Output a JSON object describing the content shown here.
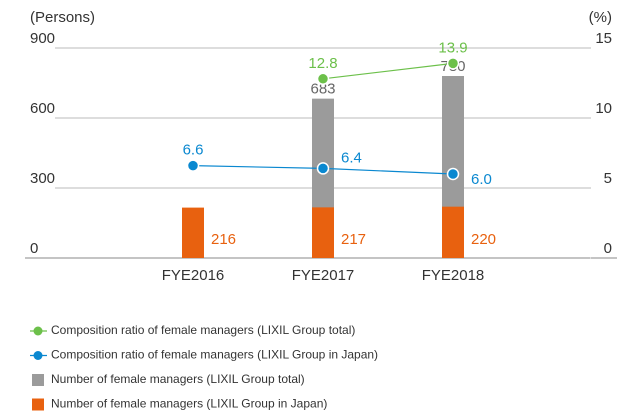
{
  "chart_data": {
    "type": "bar",
    "y_label": "(Persons)",
    "y2_label": "(%)",
    "categories": [
      "FYE2016",
      "FYE2017",
      "FYE2018"
    ],
    "ylim": [
      0,
      900
    ],
    "yticks": [
      0,
      300,
      600,
      900
    ],
    "y2lim": [
      0,
      15
    ],
    "y2ticks": [
      0,
      5,
      10,
      15
    ],
    "grid": true,
    "series": [
      {
        "name": "Composition ratio of female managers (LIXIL Group total)",
        "type": "line",
        "axis": "y2",
        "color": "#6cc04a",
        "values": [
          null,
          12.8,
          13.9
        ]
      },
      {
        "name": "Composition ratio of female managers (LIXIL Group in Japan)",
        "type": "line",
        "axis": "y2",
        "color": "#0a88d0",
        "values": [
          6.6,
          6.4,
          6.0
        ],
        "value_labels": [
          "6.6",
          "6.4",
          "6.0"
        ]
      },
      {
        "name": "Number of female managers (LIXIL Group total)",
        "type": "bar",
        "color": "#9b9b9b",
        "values": [
          null,
          683,
          780
        ]
      },
      {
        "name": "Number of female managers (LIXIL Group in Japan)",
        "type": "bar",
        "color": "#e8610f",
        "values": [
          216,
          217,
          220
        ]
      }
    ],
    "legend": "bottom"
  }
}
